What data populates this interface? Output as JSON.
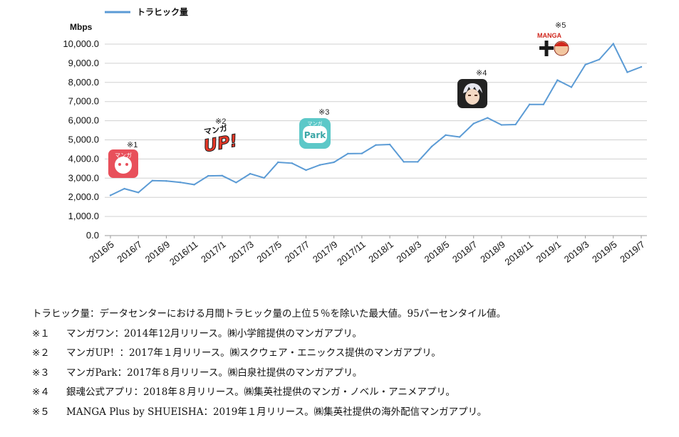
{
  "chart_data": {
    "type": "line",
    "series": [
      {
        "name": "トラヒック量",
        "color": "#5b9bd5",
        "values": [
          2100,
          2450,
          2250,
          2870,
          2850,
          2780,
          2660,
          3120,
          3130,
          2770,
          3230,
          3010,
          3830,
          3780,
          3420,
          3690,
          3830,
          4280,
          4290,
          4730,
          4760,
          3850,
          3850,
          4650,
          5250,
          5150,
          5850,
          6150,
          5780,
          5800,
          6850,
          6850,
          8120,
          7750,
          8930,
          9200,
          10020,
          8530,
          8810
        ]
      }
    ],
    "x": [
      "2016/5",
      "2016/6",
      "2016/7",
      "2016/8",
      "2016/9",
      "2016/10",
      "2016/11",
      "2016/12",
      "2017/1",
      "2017/2",
      "2017/3",
      "2017/4",
      "2017/5",
      "2017/6",
      "2017/7",
      "2017/8",
      "2017/9",
      "2017/10",
      "2017/11",
      "2017/12",
      "2018/1",
      "2018/2",
      "2018/3",
      "2018/4",
      "2018/5",
      "2018/6",
      "2018/7",
      "2018/8",
      "2018/9",
      "2018/10",
      "2018/11",
      "2018/12",
      "2019/1",
      "2019/2",
      "2019/3",
      "2019/4",
      "2019/5",
      "2019/6",
      "2019/7"
    ],
    "x_tick_labels": [
      "2016/5",
      "2016/7",
      "2016/9",
      "2016/11",
      "2017/1",
      "2017/3",
      "2017/5",
      "2017/7",
      "2017/9",
      "2017/11",
      "2018/1",
      "2018/3",
      "2018/5",
      "2018/7",
      "2018/9",
      "2018/11",
      "2019/1",
      "2019/3",
      "2019/5",
      "2019/7"
    ],
    "y_ticks": [
      "0.0",
      "1,000.0",
      "2,000.0",
      "3,000.0",
      "4,000.0",
      "5,000.0",
      "6,000.0",
      "7,000.0",
      "8,000.0",
      "9,000.0",
      "10,000.0"
    ],
    "ylim": [
      0,
      10000
    ],
    "ylabel": "Mbps",
    "grid": true,
    "legend": "top-left",
    "annotations": [
      {
        "label": "※1",
        "x": "2016/6",
        "icon": "manga-one-app-icon",
        "icon_text": "マンガ",
        "color": "#e8505b"
      },
      {
        "label": "※2",
        "x": "2017/1",
        "icon": "manga-up-logo",
        "icon_text_top": "マンガ",
        "icon_text_bottom": "UP!",
        "color": "#e73828"
      },
      {
        "label": "※3",
        "x": "2017/8",
        "icon": "manga-park-app-icon",
        "icon_text_top": "マンガ",
        "icon_text_bottom": "Park",
        "color": "#5cc8c8"
      },
      {
        "label": "※4",
        "x": "2018/8",
        "icon": "gintama-app-icon",
        "color": "#222222"
      },
      {
        "label": "※5",
        "x": "2019/1",
        "icon": "manga-plus-logo",
        "icon_text": "MANGA",
        "color": "#d0271d"
      }
    ]
  },
  "notes": [
    {
      "mark": "",
      "text": "トラヒック量：データセンターにおける月間トラヒック量の上位５％を除いた最大値。95パーセンタイル値。"
    },
    {
      "mark": "※１",
      "text": "マンガワン：2014年12月リリース。㈱小学館提供のマンガアプリ。"
    },
    {
      "mark": "※２",
      "text": "マンガUP！：2017年１月リリース。㈱スクウェア・エニックス提供のマンガアプリ。"
    },
    {
      "mark": "※３",
      "text": "マンガPark：2017年８月リリース。㈱白泉社提供のマンガアプリ。"
    },
    {
      "mark": "※４",
      "text": "銀魂公式アプリ：2018年８月リリース。㈱集英社提供のマンガ・ノベル・アニメアプリ。"
    },
    {
      "mark": "※５",
      "text": "MANGA Plus by SHUEISHA：2019年１月リリース。㈱集英社提供の海外配信マンガアプリ。"
    }
  ]
}
